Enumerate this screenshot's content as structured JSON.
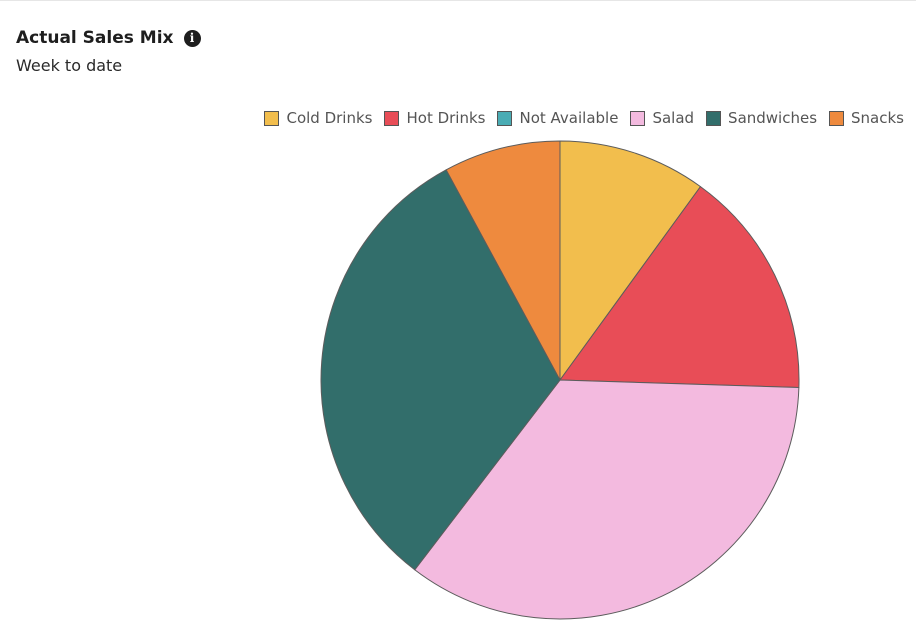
{
  "header": {
    "title": "Actual Sales Mix",
    "subtitle": "Week to date",
    "info_icon": "info-icon"
  },
  "chart_data": {
    "type": "pie",
    "title": "Actual Sales Mix",
    "subtitle": "Week to date",
    "legend_position": "top-right",
    "start_angle_deg": 0,
    "direction": "clockwise",
    "slices": [
      {
        "label": "Cold Drinks",
        "value": 10.0,
        "color": "#f2be4d"
      },
      {
        "label": "Hot Drinks",
        "value": 15.5,
        "color": "#e84d57"
      },
      {
        "label": "Not Available",
        "value": 0.0,
        "color": "#4aacb4"
      },
      {
        "label": "Salad",
        "value": 34.9,
        "color": "#f3badf"
      },
      {
        "label": "Sandwiches",
        "value": 31.7,
        "color": "#326e6b"
      },
      {
        "label": "Snacks",
        "value": 7.9,
        "color": "#ee8a3e"
      }
    ]
  }
}
